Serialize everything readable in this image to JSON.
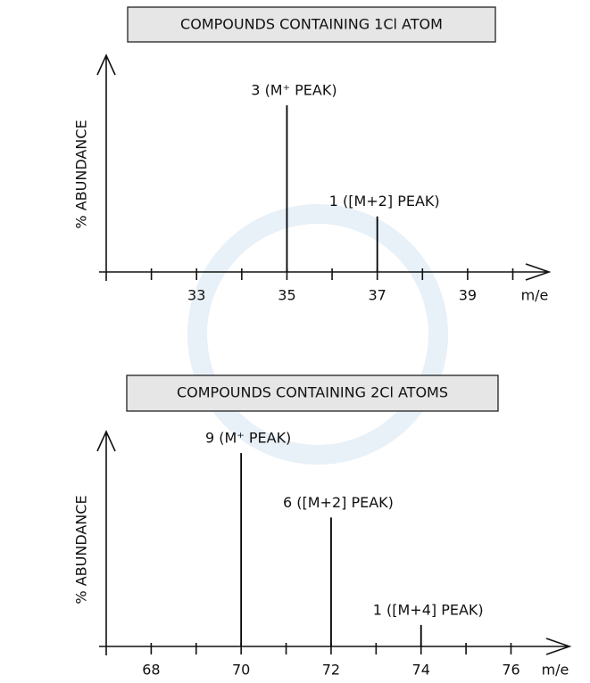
{
  "chart_data": [
    {
      "type": "bar",
      "title": "COMPOUNDS CONTAINING 1Cl ATOM",
      "y_label": "% ABUNDANCE",
      "x_label": "m/e",
      "x": [
        35,
        37
      ],
      "values": [
        3,
        1
      ],
      "value_labels": [
        "3 (M⁺ PEAK)",
        "1 ([M+2] PEAK)"
      ],
      "color": "#000000",
      "xlim": [
        31,
        40.8
      ],
      "xticks": [
        33,
        35,
        37,
        39
      ],
      "xminor_ticks": [
        32,
        34,
        36,
        38,
        40
      ],
      "ylim": [
        0,
        3.9
      ]
    },
    {
      "type": "bar",
      "title": "COMPOUNDS CONTAINING 2Cl ATOMS",
      "y_label": "% ABUNDANCE",
      "x_label": "m/e",
      "x": [
        70,
        72,
        74
      ],
      "values": [
        9,
        6,
        1
      ],
      "value_labels": [
        "9 (M⁺ PEAK)",
        "6 ([M+2] PEAK)",
        "1 ([M+4] PEAK)"
      ],
      "color": "#000000",
      "xlim": [
        67,
        77.3
      ],
      "xticks": [
        68,
        70,
        72,
        74,
        76
      ],
      "xminor_ticks": [
        69,
        71,
        73,
        75
      ],
      "ylim": [
        0,
        10
      ]
    }
  ]
}
